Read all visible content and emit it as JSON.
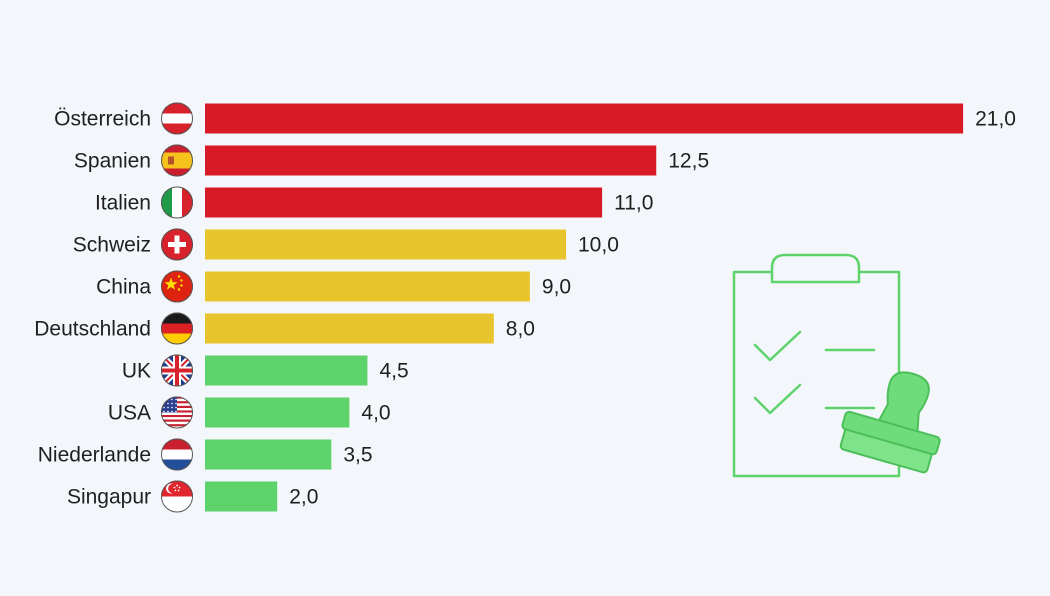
{
  "chart_data": {
    "type": "bar",
    "orientation": "horizontal",
    "title": "",
    "xlabel": "",
    "ylabel": "",
    "xlim": [
      0,
      21
    ],
    "grid": false,
    "legend": "none",
    "categories": [
      "Österreich",
      "Spanien",
      "Italien",
      "Schweiz",
      "China",
      "Deutschland",
      "UK",
      "USA",
      "Niederlande",
      "Singapur"
    ],
    "values": [
      21.0,
      12.5,
      11.0,
      10.0,
      9.0,
      8.0,
      4.5,
      4.0,
      3.5,
      2.0
    ],
    "value_labels": [
      "21,0",
      "12,5",
      "11,0",
      "10,0",
      "9,0",
      "8,0",
      "4,5",
      "4,0",
      "3,5",
      "2,0"
    ],
    "flags": [
      "austria-flag-icon",
      "spain-flag-icon",
      "italy-flag-icon",
      "switzerland-flag-icon",
      "china-flag-icon",
      "germany-flag-icon",
      "uk-flag-icon",
      "usa-flag-icon",
      "netherlands-flag-icon",
      "singapore-flag-icon"
    ],
    "bar_colors": [
      "#d71a26",
      "#d71a26",
      "#d71a26",
      "#e8c52c",
      "#e8c52c",
      "#e8c52c",
      "#5ed36c",
      "#5ed36c",
      "#5ed36c",
      "#5ed36c"
    ]
  },
  "illustration": {
    "icon": "clipboard-checklist-stamp-icon",
    "color": "#5ed36c"
  }
}
